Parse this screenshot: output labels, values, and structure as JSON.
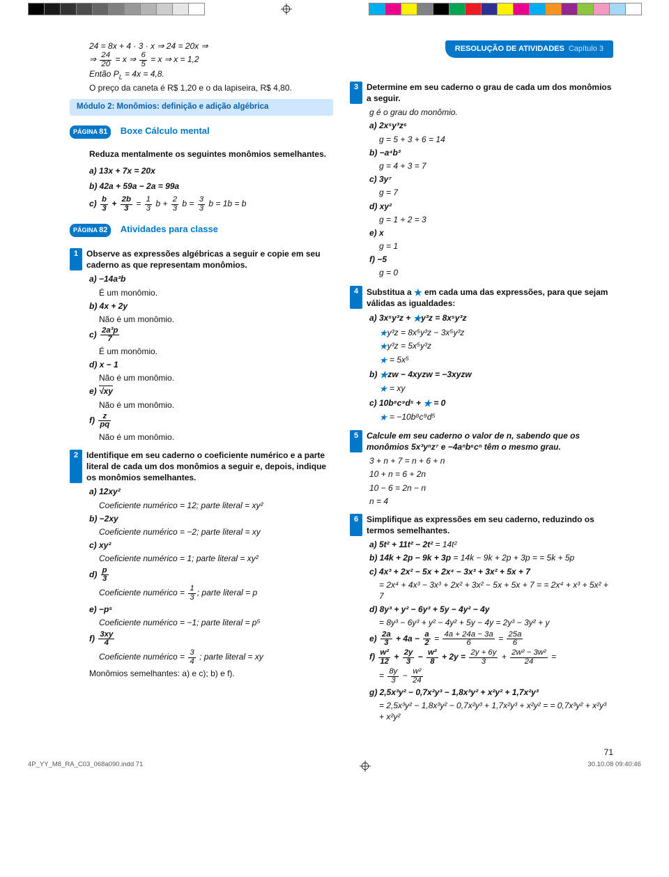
{
  "colorbars": {
    "left": [
      "#000000",
      "#1a1a1a",
      "#333333",
      "#4d4d4d",
      "#666666",
      "#808080",
      "#999999",
      "#b3b3b3",
      "#cccccc",
      "#e6e6e6",
      "#ffffff"
    ],
    "right": [
      "#00aeef",
      "#ec008c",
      "#fff200",
      "#808285",
      "#000000",
      "#00a651",
      "#ed1c24",
      "#2e3192",
      "#fff200",
      "#ec008c",
      "#00aeef",
      "#f7941d",
      "#92278f",
      "#8dc63f",
      "#f49ac1",
      "#a3d9f5",
      "#ffffff"
    ]
  },
  "header": {
    "title": "RESOLUÇÃO DE ATIVIDADES",
    "chapter": "Capítulo 3"
  },
  "pageNumber": "71",
  "footer": {
    "file": "4P_YY_M8_RA_C03_068a090.indd   71",
    "stamp": "30.10.08   09:40:46"
  },
  "leftTop": {
    "l1": "24 = 8x + 4 · 3 · x ⇒ 24 = 20x ⇒",
    "l2a": "⇒ ",
    "l2_f1n": "24",
    "l2_f1d": "20",
    "l2b": " = x ⇒ ",
    "l2_f2n": "6",
    "l2_f2d": "5",
    "l2c": " = x ⇒ x = 1,2",
    "l3": "Então P",
    "l3sub": "L",
    "l3b": " = 4x = 4,8.",
    "l4": "O preço da caneta é R$ 1,20 e o da lapiseira, R$ 4,80."
  },
  "module": "Módulo 2: Monômios: definição e adição algébrica",
  "pagina81": "PÁGINA ",
  "pg81": "81",
  "boxe": "Boxe Cálculo mental",
  "reduza": "Reduza mentalmente os seguintes monômios semelhantes.",
  "ra": "a) 13x + 7x = 20x",
  "rb": "b) 42a + 59a − 2a = 99a",
  "rc_pre": "c) ",
  "rc_f1n": "b",
  "rc_f1d": "3",
  "rc_plus": " + ",
  "rc_f2n": "2b",
  "rc_f2d": "3",
  "rc_eq": " = ",
  "rc_f3n": "1",
  "rc_f3d": "3",
  "rc_mid1": " b + ",
  "rc_f4n": "2",
  "rc_f4d": "3",
  "rc_mid2": " b = ",
  "rc_f5n": "3",
  "rc_f5d": "3",
  "rc_end": " b = 1b = b",
  "pagina82": "PÁGINA ",
  "pg82": "82",
  "ativ": "Atividades para classe",
  "q1": {
    "text": "Observe as expressões algébricas a seguir e copie em seu caderno as que representam monômios.",
    "a": "a) −14a³b",
    "a2": "É um monômio.",
    "b": "b) 4x + 2y",
    "b2": "Não é um monômio.",
    "c_pre": "c) ",
    "c_fn": "2a³p",
    "c_fd": "7",
    "c2": "É um monômio.",
    "d": "d) x − 1",
    "d2": "Não é um monômio.",
    "e_pre": "e) ",
    "e_sqrt": "√xy",
    "e2": "Não é um monômio.",
    "f_pre": "f) ",
    "f_fn": "z",
    "f_fd": "pq",
    "f2": "Não é um monômio."
  },
  "q2": {
    "text": "Identifique em seu caderno o coeficiente numérico e a parte literal de cada um dos monômios a seguir e, depois, indique os monômios semelhantes.",
    "a": "a) 12xy²",
    "a2": "Coeficiente numérico = 12; parte literal = xy²",
    "b": "b) −2xy",
    "b2": "Coeficiente numérico = −2; parte literal = xy",
    "c": "c) xy²",
    "c2": "Coeficiente numérico = 1; parte literal = xy²",
    "d_pre": "d) ",
    "d_fn": "p",
    "d_fd": "3",
    "d2a": "Coeficiente numérico = ",
    "d2_fn": "1",
    "d2_fd": "3",
    "d2b": "; parte literal = p",
    "e": "e) −p⁵",
    "e2": "Coeficiente numérico = −1; parte literal = p⁵",
    "f_pre": "f) ",
    "f_fn": "3xy",
    "f_fd": "4",
    "f2a": "Coeficiente numérico = ",
    "f2_fn": "3",
    "f2_fd": "4",
    "f2b": " ; parte literal = xy",
    "mon": "Monômios semelhantes: a) e c); b) e f)."
  },
  "q3": {
    "text": "Determine em seu caderno o grau de cada um dos monômios a seguir.",
    "gdef": "g é o grau do monômio.",
    "a": "a) 2x⁵y³z⁶",
    "a2": "g = 5 + 3 + 6 = 14",
    "b": "b) −a⁴b³",
    "b2": "g = 4 + 3 = 7",
    "c": "c) 3y⁷",
    "c2": "g = 7",
    "d": "d) xy²",
    "d2": "g = 1 + 2 = 3",
    "e": "e) x",
    "e2": "g = 1",
    "f": "f) −5",
    "f2": "g = 0"
  },
  "q4": {
    "text": "Substitua a ★ em cada uma das expressões, para que sejam válidas as igualdades:",
    "a": "a) 3x⁵y³z + ★y³z = 8x⁵y³z",
    "a2": "★y³z = 8x⁵y³z − 3x⁵y³z",
    "a3": "★y³z = 5x⁵y³z",
    "a4": "★ = 5x⁵",
    "b": "b) ★zw − 4xyzw = −3xyzw",
    "b2": "★ = xy",
    "c": "c) 10b⁸c⁹d⁵ + ★ = 0",
    "c2": "★ = −10b⁸c⁹d⁵"
  },
  "q5": {
    "text": "Calcule em seu caderno o valor de n, sabendo que os monômios 5x³yⁿz⁷ e −4aⁿb⁶cⁿ têm o mesmo grau.",
    "l1": "3 + n + 7 = n + 6 + n",
    "l2": "10 + n = 6 + 2n",
    "l3": "10 − 6 = 2n − n",
    "l4": "n = 4"
  },
  "q6": {
    "text": "Simplifique as expressões em seu caderno, reduzindo os termos semelhantes.",
    "a": "a) 5t² + 11t² − 2t² = 14t²",
    "b": "b) 14k + 2p − 9k + 3p = 14k − 9k + 2p + 3p = = 5k + 5p",
    "c": "c) 4x³ + 2x² − 5x + 2x⁴ − 3x³ + 3x² + 5x + 7",
    "c2": "= 2x⁴ + 4x³ − 3x³ + 2x² + 3x² − 5x + 5x + 7 = = 2x⁴ + x³ + 5x² + 7",
    "d": "d) 8y³ + y² − 6y³ + 5y − 4y² − 4y",
    "d2": "= 8y³ − 6y³ + y² − 4y² + 5y − 4y = 2y³ − 3y² + y",
    "e_pre": "e) ",
    "e_f1n": "2a",
    "e_f1d": "3",
    "e_mid": " + 4a − ",
    "e_f2n": "a",
    "e_f2d": "2",
    "e_eq": " = ",
    "e_f3n": "4a + 24a − 3a",
    "e_f3d": "6",
    "e_eq2": " = ",
    "e_f4n": "25a",
    "e_f4d": "6",
    "f_pre": "f) ",
    "f_f1n": "w²",
    "f_f1d": "12",
    "f_p1": " + ",
    "f_f2n": "2y",
    "f_f2d": "3",
    "f_m1": " − ",
    "f_f3n": "w²",
    "f_f3d": "8",
    "f_p2": " + 2y = ",
    "f_f4n": "2y + 6y",
    "f_f4d": "3",
    "f_p3": " + ",
    "f_f5n": "2w² − 3w²",
    "f_f5d": "24",
    "f_eq": " =",
    "f_l2a": "= ",
    "f_l2f1n": "8y",
    "f_l2f1d": "3",
    "f_l2m": " − ",
    "f_l2f2n": "w²",
    "f_l2f2d": "24",
    "g": "g) 2,5x³y² − 0,7x²y³ − 1,8x³y² + x²y² + 1,7x²y³",
    "g2": "= 2,5x³y² − 1,8x³y² − 0,7x²y³ + 1,7x²y³ + x²y² = = 0,7x³y² + x²y³ + x²y²"
  }
}
